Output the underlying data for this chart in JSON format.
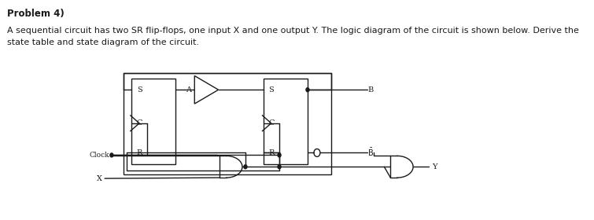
{
  "title": "Problem 4)",
  "line1": "A sequential circuit has two SR flip-flops, one input X and one output Y. The logic diagram of the circuit is shown below. Derive the",
  "line2": "state table and state diagram of the circuit.",
  "bg_color": "#ffffff",
  "lc": "#1a1a1a",
  "title_fs": 8.5,
  "body_fs": 8.0
}
